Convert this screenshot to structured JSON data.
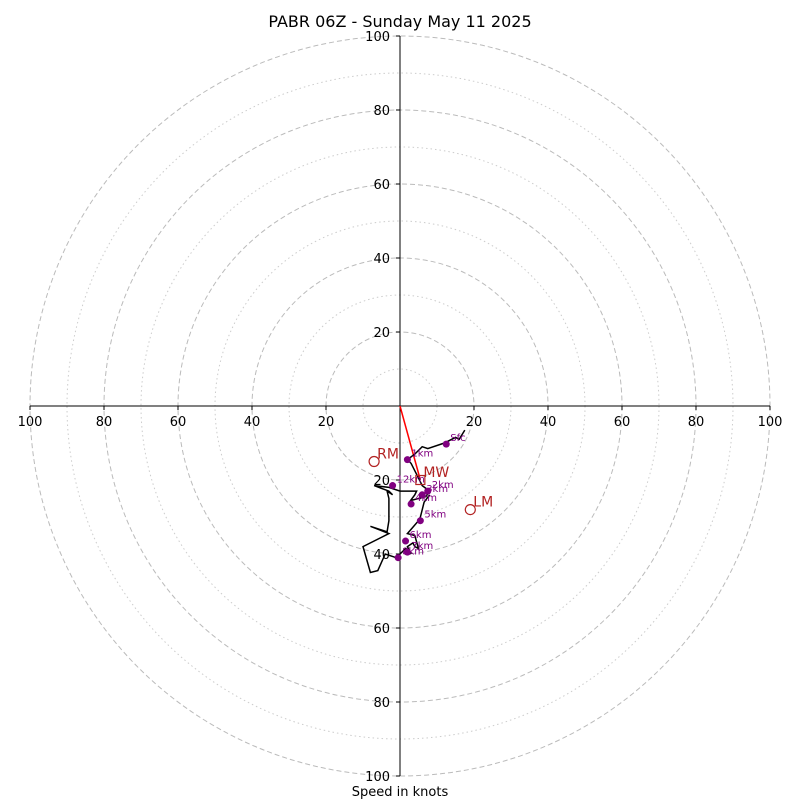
{
  "chart_data": {
    "type": "hodograph",
    "title": "PABR 06Z - Sunday May 11 2025",
    "xlabel": "Speed in knots",
    "speed_ring_range": [
      0,
      100
    ],
    "major_rings": [
      20,
      40,
      60,
      80,
      100
    ],
    "minor_rings": [
      10,
      30,
      50,
      70,
      90
    ],
    "tick_labels": {
      "x_left": [
        "100",
        "80",
        "60",
        "40",
        "20"
      ],
      "x_right": [
        "20",
        "40",
        "60",
        "80",
        "100"
      ],
      "y_top": [
        "100",
        "80",
        "60",
        "40",
        "20"
      ],
      "y_bottom": [
        "20",
        "40",
        "60",
        "80",
        "100"
      ]
    },
    "ticks": {
      "x_left": [
        -100,
        -80,
        -60,
        -40,
        -20
      ],
      "x_right": [
        20,
        40,
        60,
        80,
        100
      ],
      "y_top": [
        100,
        80,
        60,
        40,
        20
      ],
      "y_bottom": [
        -20,
        -40,
        -60,
        -80,
        -100
      ]
    },
    "hodograph_trace": {
      "color": "#000000",
      "points": [
        [
          17.5,
          -6.5
        ],
        [
          16.0,
          -9.0
        ],
        [
          15.0,
          -8.5
        ],
        [
          12.0,
          -10.0
        ],
        [
          7.5,
          -11.5
        ],
        [
          6.0,
          -11.0
        ],
        [
          4.0,
          -13.0
        ],
        [
          2.0,
          -14.5
        ],
        [
          3.0,
          -15.5
        ],
        [
          5.0,
          -19.5
        ],
        [
          6.0,
          -21.5
        ],
        [
          8.0,
          -23.0
        ],
        [
          7.0,
          -24.5
        ],
        [
          5.0,
          -25.0
        ],
        [
          3.0,
          -25.5
        ],
        [
          3.0,
          -27.0
        ],
        [
          2.5,
          -26.0
        ],
        [
          4.0,
          -24.0
        ],
        [
          4.5,
          -23.0
        ],
        [
          0.0,
          -23.0
        ],
        [
          -3.0,
          -22.0
        ],
        [
          -7.0,
          -21.5
        ],
        [
          -3.0,
          -23.0
        ],
        [
          -2.0,
          -24.0
        ],
        [
          -3.5,
          -23.0
        ],
        [
          -3.0,
          -25.0
        ],
        [
          -3.0,
          -31.0
        ],
        [
          -3.5,
          -34.0
        ],
        [
          -8.0,
          -32.5
        ],
        [
          -3.0,
          -34.5
        ],
        [
          -10.0,
          -38.0
        ],
        [
          -8.0,
          -45.0
        ],
        [
          -6.0,
          -44.5
        ],
        [
          -4.0,
          -40.0
        ],
        [
          -1.0,
          -41.0
        ],
        [
          1.5,
          -38.5
        ],
        [
          3.0,
          -40.0
        ],
        [
          2.0,
          -38.0
        ],
        [
          3.5,
          -37.0
        ],
        [
          4.0,
          -38.0
        ],
        [
          5.0,
          -38.5
        ],
        [
          4.0,
          -35.0
        ],
        [
          2.0,
          -34.5
        ],
        [
          5.0,
          -31.0
        ],
        [
          5.5,
          -30.0
        ],
        [
          6.5,
          -26.0
        ],
        [
          8.0,
          -24.0
        ]
      ]
    },
    "height_markers": {
      "color": "#800080",
      "points": [
        {
          "label": "Sfc",
          "x": 12.5,
          "y": -10.3
        },
        {
          "label": "1km",
          "x": 2.0,
          "y": -14.5
        },
        {
          "label": "2km",
          "x": 7.5,
          "y": -23.0
        },
        {
          "label": "3km",
          "x": 6.0,
          "y": -24.0
        },
        {
          "label": "4km",
          "x": 3.0,
          "y": -26.5
        },
        {
          "label": "5km",
          "x": 5.5,
          "y": -31.0
        },
        {
          "label": "6km",
          "x": 1.5,
          "y": -36.5
        },
        {
          "label": "7km",
          "x": 2.0,
          "y": -39.5
        },
        {
          "label": "8km",
          "x": -0.5,
          "y": -41.0
        },
        {
          "label": "12km",
          "x": -2.0,
          "y": -21.5
        }
      ]
    },
    "storm_motions": {
      "color": "#b22222",
      "points": [
        {
          "label": "RM",
          "x": -7.0,
          "y": -15.0
        },
        {
          "label": "LM",
          "x": 19.0,
          "y": -28.0
        },
        {
          "label": "MW",
          "x": 5.5,
          "y": -20.0
        }
      ]
    },
    "bunkers_vector": {
      "color": "#ff0000",
      "from": [
        0,
        0
      ],
      "to": [
        5.5,
        -20.0
      ]
    }
  }
}
